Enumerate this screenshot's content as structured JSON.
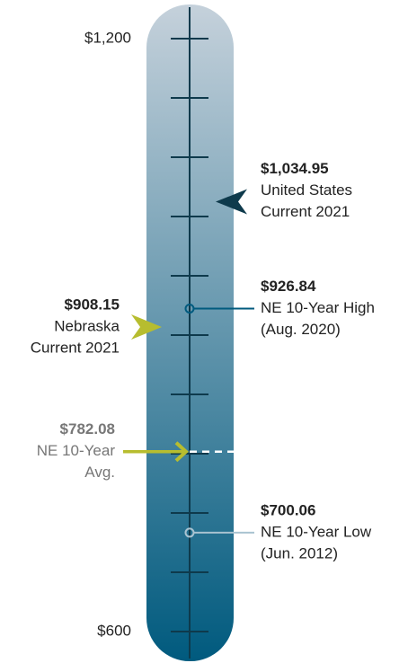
{
  "chart_data": {
    "type": "thermometer",
    "ylim": [
      600,
      1200
    ],
    "yticks": [
      {
        "value": 1200,
        "label": "$1,200"
      },
      {
        "value": 600,
        "label": "$600"
      }
    ],
    "minor_ticks": [
      660,
      720,
      780,
      840,
      900,
      960,
      1020,
      1080,
      1140
    ],
    "colors": {
      "top": "#c5d1db",
      "bottom": "#005a7e"
    },
    "markers": [
      {
        "value": 1034.95,
        "value_label": "$1,034.95",
        "label": [
          "United States",
          "Current 2021"
        ],
        "side": "right",
        "style": "chevron",
        "color": "#0e3a4c"
      },
      {
        "value": 926.84,
        "value_label": "$926.84",
        "label": [
          "NE 10-Year High",
          "(Aug. 2020)"
        ],
        "side": "right",
        "style": "dot",
        "color": "#005a7e"
      },
      {
        "value": 908.15,
        "value_label": "$908.15",
        "label": [
          "Nebraska",
          "Current 2021"
        ],
        "side": "left",
        "style": "chevron",
        "color": "#b7bd2f"
      },
      {
        "value": 782.08,
        "value_label": "$782.08",
        "label": [
          "NE 10-Year",
          "Avg."
        ],
        "side": "left",
        "style": "arrow",
        "color": "#b7bd2f"
      },
      {
        "value": 700.06,
        "value_label": "$700.06",
        "label": [
          "NE 10-Year Low",
          "(Jun. 2012)"
        ],
        "side": "right",
        "style": "dot",
        "color": "#a9c3d1"
      }
    ]
  }
}
